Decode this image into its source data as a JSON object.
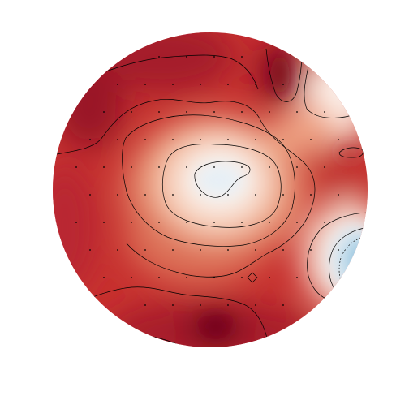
{
  "figure": {
    "kind": "topographic scalp map",
    "colormap": "RdBu_r",
    "colors": {
      "background": "#ffffff",
      "deep_red": "#8c0d25",
      "red": "#c0272d",
      "mid_red": "#d65a4a",
      "salmon": "#f0a07e",
      "peach": "#f8d2bd",
      "white": "#f9f4f1",
      "pale_blue": "#e3eef6",
      "light_blue": "#a9cfe5",
      "blue": "#6aaed6",
      "contour": "#000000",
      "sensor": "#000000"
    },
    "contour_lines": true,
    "sensor_markers": true
  }
}
